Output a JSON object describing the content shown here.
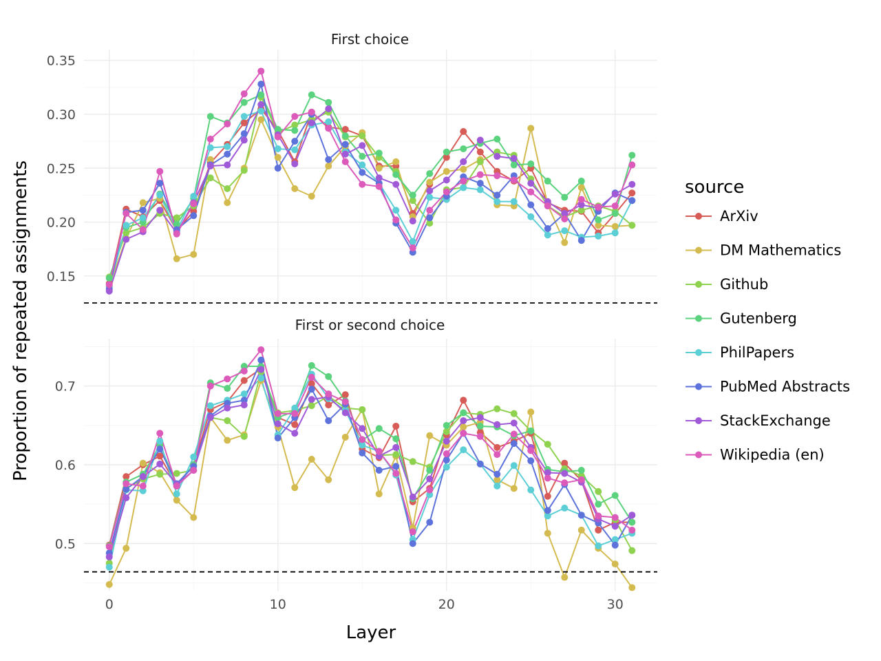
{
  "chart_data": {
    "type": "line",
    "xlabel": "Layer",
    "ylabel": "Proportion of repeated assignments",
    "legend_title": "source",
    "legend_position": "right",
    "grid": true,
    "x": [
      0,
      1,
      2,
      3,
      4,
      5,
      6,
      7,
      8,
      9,
      10,
      11,
      12,
      13,
      14,
      15,
      16,
      17,
      18,
      19,
      20,
      21,
      22,
      23,
      24,
      25,
      26,
      27,
      28,
      29,
      30,
      31
    ],
    "x_ticks": [
      0,
      10,
      20,
      30
    ],
    "series_styles": [
      {
        "name": "ArXiv",
        "color": "#d75c57"
      },
      {
        "name": "DM Mathematics",
        "color": "#d4bb50"
      },
      {
        "name": "Github",
        "color": "#8ed24f"
      },
      {
        "name": "Gutenberg",
        "color": "#5bd27e"
      },
      {
        "name": "PhilPapers",
        "color": "#5ccfd6"
      },
      {
        "name": "PubMed Abstracts",
        "color": "#5d73db"
      },
      {
        "name": "StackExchange",
        "color": "#a05ad8"
      },
      {
        "name": "Wikipedia (en)",
        "color": "#db5aba"
      }
    ],
    "panels": [
      {
        "title": "First choice",
        "ylim": [
          0.125,
          0.36
        ],
        "y_ticks": [
          0.15,
          0.2,
          0.25,
          0.3,
          0.35
        ],
        "y_tick_labels": [
          "0.15",
          "0.20",
          "0.25",
          "0.30",
          "0.35"
        ],
        "reference_line": 0.125,
        "series": [
          {
            "name": "ArXiv",
            "values": [
              0.143,
              0.212,
              0.205,
              0.22,
              0.192,
              0.21,
              0.255,
              0.272,
              0.292,
              0.305,
              0.285,
              0.256,
              0.302,
              0.288,
              0.286,
              0.28,
              0.252,
              0.252,
              0.208,
              0.235,
              0.26,
              0.284,
              0.265,
              0.247,
              0.238,
              0.25,
              0.218,
              0.211,
              0.21,
              0.19,
              0.208,
              0.227
            ]
          },
          {
            "name": "DM Mathematics",
            "values": [
              0.141,
              0.185,
              0.218,
              0.222,
              0.166,
              0.17,
              0.258,
              0.218,
              0.25,
              0.295,
              0.26,
              0.231,
              0.224,
              0.252,
              0.27,
              0.283,
              0.25,
              0.256,
              0.205,
              0.237,
              0.247,
              0.249,
              0.258,
              0.216,
              0.215,
              0.287,
              0.216,
              0.181,
              0.232,
              0.197,
              0.196,
              0.197
            ]
          },
          {
            "name": "Github",
            "values": [
              0.149,
              0.19,
              0.195,
              0.208,
              0.204,
              0.215,
              0.241,
              0.231,
              0.248,
              0.316,
              0.283,
              0.29,
              0.295,
              0.302,
              0.279,
              0.28,
              0.26,
              0.247,
              0.22,
              0.199,
              0.23,
              0.232,
              0.256,
              0.265,
              0.262,
              0.24,
              0.215,
              0.205,
              0.211,
              0.215,
              0.21,
              0.197
            ]
          },
          {
            "name": "Gutenberg",
            "values": [
              0.148,
              0.195,
              0.2,
              0.226,
              0.198,
              0.222,
              0.298,
              0.292,
              0.311,
              0.318,
              0.286,
              0.285,
              0.318,
              0.311,
              0.28,
              0.261,
              0.264,
              0.244,
              0.225,
              0.245,
              0.265,
              0.268,
              0.273,
              0.277,
              0.253,
              0.254,
              0.238,
              0.223,
              0.238,
              0.202,
              0.208,
              0.262
            ]
          },
          {
            "name": "PhilPapers",
            "values": [
              0.14,
              0.197,
              0.204,
              0.225,
              0.192,
              0.224,
              0.269,
              0.27,
              0.298,
              0.303,
              0.268,
              0.267,
              0.29,
              0.293,
              0.265,
              0.253,
              0.236,
              0.211,
              0.182,
              0.223,
              0.221,
              0.232,
              0.23,
              0.219,
              0.219,
              0.205,
              0.188,
              0.192,
              0.186,
              0.187,
              0.19,
              0.22
            ]
          },
          {
            "name": "PubMed Abstracts",
            "values": [
              0.138,
              0.209,
              0.211,
              0.236,
              0.193,
              0.206,
              0.253,
              0.263,
              0.282,
              0.328,
              0.25,
              0.275,
              0.3,
              0.258,
              0.272,
              0.246,
              0.236,
              0.199,
              0.172,
              0.204,
              0.224,
              0.242,
              0.236,
              0.225,
              0.243,
              0.216,
              0.194,
              0.208,
              0.183,
              0.21,
              0.227,
              0.22
            ]
          },
          {
            "name": "StackExchange",
            "values": [
              0.136,
              0.184,
              0.191,
              0.211,
              0.19,
              0.218,
              0.252,
              0.253,
              0.276,
              0.309,
              0.281,
              0.254,
              0.292,
              0.305,
              0.263,
              0.271,
              0.241,
              0.235,
              0.201,
              0.229,
              0.239,
              0.256,
              0.276,
              0.261,
              0.259,
              0.236,
              0.219,
              0.208,
              0.216,
              0.213,
              0.226,
              0.235
            ]
          },
          {
            "name": "Wikipedia (en)",
            "values": [
              0.142,
              0.208,
              0.193,
              0.247,
              0.189,
              0.217,
              0.277,
              0.291,
              0.319,
              0.34,
              0.279,
              0.298,
              0.302,
              0.287,
              0.256,
              0.235,
              0.233,
              0.202,
              0.176,
              0.211,
              0.228,
              0.238,
              0.244,
              0.243,
              0.239,
              0.228,
              0.215,
              0.203,
              0.221,
              0.214,
              0.215,
              0.253
            ]
          }
        ]
      },
      {
        "title": "First or second choice",
        "ylim": [
          0.44,
          0.76
        ],
        "y_ticks": [
          0.5,
          0.6,
          0.7
        ],
        "y_tick_labels": [
          "0.5",
          "0.6",
          "0.7"
        ],
        "reference_line": 0.464,
        "series": [
          {
            "name": "ArXiv",
            "values": [
              0.498,
              0.585,
              0.6,
              0.611,
              0.573,
              0.6,
              0.67,
              0.68,
              0.707,
              0.722,
              0.66,
              0.651,
              0.703,
              0.676,
              0.689,
              0.62,
              0.609,
              0.649,
              0.553,
              0.57,
              0.638,
              0.682,
              0.641,
              0.622,
              0.63,
              0.64,
              0.56,
              0.602,
              0.58,
              0.517,
              0.527,
              0.527
            ]
          },
          {
            "name": "DM Mathematics",
            "values": [
              0.448,
              0.494,
              0.602,
              0.59,
              0.555,
              0.533,
              0.66,
              0.631,
              0.638,
              0.707,
              0.648,
              0.571,
              0.607,
              0.581,
              0.635,
              0.67,
              0.563,
              0.611,
              0.52,
              0.637,
              0.625,
              0.648,
              0.654,
              0.581,
              0.57,
              0.667,
              0.513,
              0.457,
              0.517,
              0.494,
              0.474,
              0.444
            ]
          },
          {
            "name": "Github",
            "values": [
              0.475,
              0.57,
              0.582,
              0.588,
              0.589,
              0.593,
              0.66,
              0.656,
              0.636,
              0.718,
              0.666,
              0.669,
              0.675,
              0.687,
              0.672,
              0.67,
              0.612,
              0.613,
              0.604,
              0.597,
              0.642,
              0.666,
              0.664,
              0.671,
              0.665,
              0.643,
              0.626,
              0.595,
              0.586,
              0.566,
              0.53,
              0.491
            ]
          },
          {
            "name": "Gutenberg",
            "values": [
              0.497,
              0.578,
              0.588,
              0.625,
              0.575,
              0.6,
              0.704,
              0.697,
              0.725,
              0.725,
              0.66,
              0.668,
              0.726,
              0.712,
              0.681,
              0.631,
              0.646,
              0.633,
              0.557,
              0.593,
              0.65,
              0.666,
              0.649,
              0.648,
              0.637,
              0.643,
              0.594,
              0.591,
              0.593,
              0.55,
              0.561,
              0.527
            ]
          },
          {
            "name": "PhilPapers",
            "values": [
              0.47,
              0.568,
              0.567,
              0.63,
              0.563,
              0.61,
              0.675,
              0.682,
              0.69,
              0.71,
              0.638,
              0.672,
              0.715,
              0.684,
              0.669,
              0.625,
              0.617,
              0.587,
              0.505,
              0.562,
              0.597,
              0.619,
              0.601,
              0.573,
              0.599,
              0.568,
              0.535,
              0.545,
              0.536,
              0.497,
              0.505,
              0.513
            ]
          },
          {
            "name": "PubMed Abstracts",
            "values": [
              0.488,
              0.569,
              0.585,
              0.62,
              0.576,
              0.598,
              0.662,
              0.678,
              0.682,
              0.733,
              0.634,
              0.66,
              0.696,
              0.656,
              0.677,
              0.615,
              0.593,
              0.598,
              0.5,
              0.527,
              0.606,
              0.64,
              0.601,
              0.588,
              0.627,
              0.605,
              0.542,
              0.575,
              0.536,
              0.526,
              0.498,
              0.536
            ]
          },
          {
            "name": "StackExchange",
            "values": [
              0.483,
              0.558,
              0.585,
              0.601,
              0.575,
              0.593,
              0.66,
              0.672,
              0.676,
              0.721,
              0.652,
              0.64,
              0.683,
              0.686,
              0.666,
              0.646,
              0.611,
              0.622,
              0.559,
              0.582,
              0.63,
              0.656,
              0.66,
              0.651,
              0.653,
              0.622,
              0.59,
              0.589,
              0.578,
              0.531,
              0.522,
              0.536
            ]
          },
          {
            "name": "Wikipedia (en)",
            "values": [
              0.496,
              0.576,
              0.573,
              0.64,
              0.573,
              0.593,
              0.7,
              0.709,
              0.719,
              0.746,
              0.665,
              0.665,
              0.711,
              0.69,
              0.68,
              0.632,
              0.617,
              0.589,
              0.515,
              0.568,
              0.614,
              0.64,
              0.636,
              0.613,
              0.639,
              0.618,
              0.583,
              0.577,
              0.581,
              0.535,
              0.533,
              0.517
            ]
          }
        ]
      }
    ]
  }
}
